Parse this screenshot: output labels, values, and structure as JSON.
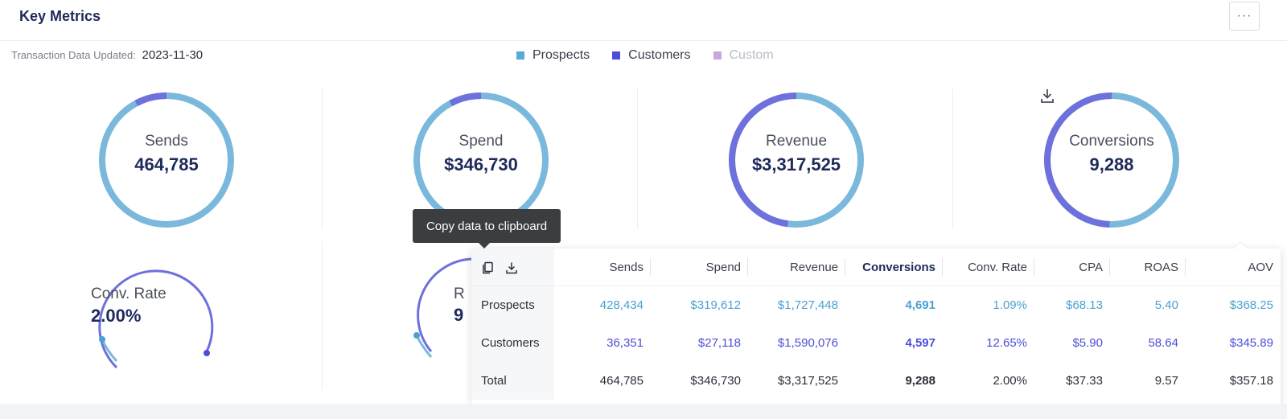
{
  "header": {
    "title": "Key Metrics",
    "more_label": "···"
  },
  "updated": {
    "label": "Transaction Data Updated:",
    "value": "2023-11-30"
  },
  "legend": [
    {
      "label": "Prospects",
      "color": "#5aa9d6",
      "enabled": true
    },
    {
      "label": "Customers",
      "color": "#4c4fd6",
      "enabled": true
    },
    {
      "label": "Custom",
      "color": "#c9a6e0",
      "enabled": false
    }
  ],
  "colors": {
    "prospects_ring": "#7ab8dc",
    "customers_ring": "#6e70dc",
    "title": "#1f2a5c"
  },
  "metrics": [
    {
      "label": "Sends",
      "value": "464,785",
      "customers_fraction": 0.078
    },
    {
      "label": "Spend",
      "value": "$346,730",
      "customers_fraction": 0.078
    },
    {
      "label": "Revenue",
      "value": "$3,317,525",
      "customers_fraction": 0.479
    },
    {
      "label": "Conversions",
      "value": "9,288",
      "customers_fraction": 0.495
    }
  ],
  "gauges": [
    {
      "label": "Conv. Rate",
      "value": "2.00%"
    },
    {
      "label": "R",
      "value": "9"
    }
  ],
  "tooltip": {
    "text": "Copy data to clipboard"
  },
  "table": {
    "columns": [
      "Sends",
      "Spend",
      "Revenue",
      "Conversions",
      "Conv. Rate",
      "CPA",
      "ROAS",
      "AOV"
    ],
    "rows": [
      {
        "label": "Prospects",
        "values": [
          "428,434",
          "$319,612",
          "$1,727,448",
          "4,691",
          "1.09%",
          "$68.13",
          "5.40",
          "$368.25"
        ]
      },
      {
        "label": "Customers",
        "values": [
          "36,351",
          "$27,118",
          "$1,590,076",
          "4,597",
          "12.65%",
          "$5.90",
          "58.64",
          "$345.89"
        ]
      },
      {
        "label": "Total",
        "values": [
          "464,785",
          "$346,730",
          "$3,317,525",
          "9,288",
          "2.00%",
          "$37.33",
          "9.57",
          "$357.18"
        ]
      }
    ]
  }
}
